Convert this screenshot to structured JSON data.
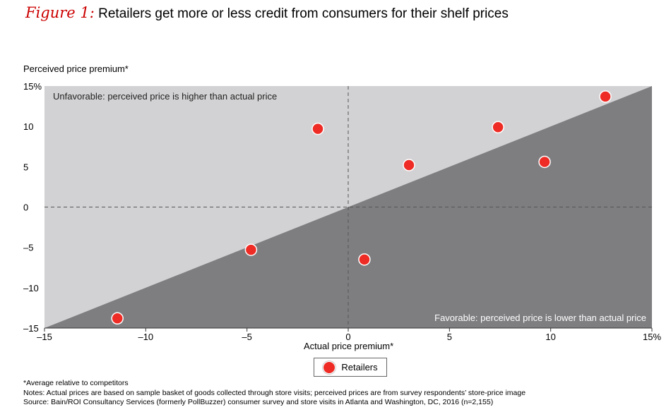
{
  "figure": {
    "label": "Figure 1:",
    "title": "Retailers get more or less credit from consumers for their shelf prices"
  },
  "chart_data": {
    "type": "scatter",
    "ylabel": "Perceived price premium*",
    "xlabel": "Actual price premium*",
    "xlim": [
      -15,
      15
    ],
    "ylim": [
      -15,
      15
    ],
    "x_ticks": [
      -15,
      -10,
      -5,
      0,
      5,
      10,
      15
    ],
    "x_tick_labels": [
      "–15",
      "–10",
      "–5",
      "0",
      "5",
      "10",
      "15%"
    ],
    "y_ticks": [
      15,
      10,
      5,
      0,
      -5,
      -10,
      -15
    ],
    "y_tick_labels": [
      "15%",
      "10",
      "5",
      "0",
      "–5",
      "–10",
      "–15"
    ],
    "reference_line": "y = x",
    "zero_lines": "dashed",
    "regions": {
      "unfavorable": "Unfavorable: perceived price is higher than actual price",
      "favorable": "Favorable: perceived price is lower than actual price"
    },
    "series": [
      {
        "name": "Retailers",
        "color": "#ee2b24",
        "points": [
          {
            "x": -11.4,
            "y": -13.8
          },
          {
            "x": -4.8,
            "y": -5.3
          },
          {
            "x": -1.5,
            "y": 9.7
          },
          {
            "x": 0.8,
            "y": -6.5
          },
          {
            "x": 3.0,
            "y": 5.2
          },
          {
            "x": 7.4,
            "y": 9.9
          },
          {
            "x": 9.7,
            "y": 5.6
          },
          {
            "x": 12.7,
            "y": 13.7
          }
        ]
      }
    ],
    "legend": "bottom-center",
    "colors": {
      "unfavorable_region": "#d2d2d4",
      "favorable_region": "#7e7e81",
      "dashed_line": "#555555"
    }
  },
  "legend": {
    "label": "Retailers"
  },
  "notes": {
    "footnote": "*Average relative to competitors",
    "notes": "Notes: Actual prices are based on sample basket of goods collected through store visits; perceived prices are from survey respondents’ store-price image",
    "source": "Source: Bain/ROI Consultancy Services (formerly PollBuzzer) consumer survey and store visits in Atlanta and Washington, DC, 2016 (n=2,155)"
  }
}
